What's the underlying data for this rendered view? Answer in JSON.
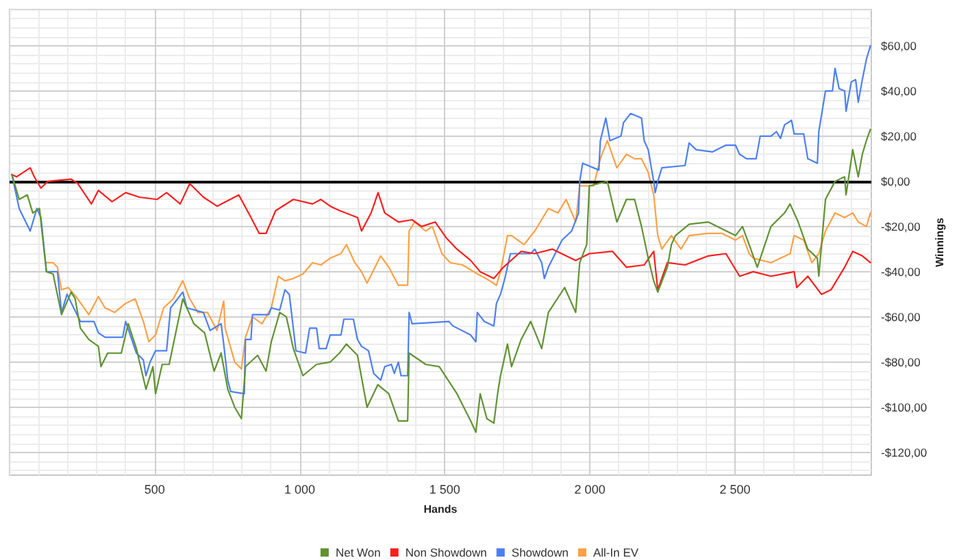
{
  "chart_data": {
    "type": "line",
    "xlabel": "Hands",
    "ylabel": "Winnings",
    "xlim": [
      0,
      2970
    ],
    "xticks": [
      500,
      {
        "value": 1000,
        "label": "1 000"
      },
      {
        "value": 1500,
        "label": "1 500"
      },
      {
        "value": 2000,
        "label": "2 000"
      },
      {
        "value": 2500,
        "label": "2 500"
      }
    ],
    "ylim": [
      -130,
      76
    ],
    "yticks": [
      {
        "value": -120,
        "label": "-$120,00"
      },
      {
        "value": -100,
        "label": "-$100,00"
      },
      {
        "value": -80,
        "label": "-$80,00"
      },
      {
        "value": -60,
        "label": "-$60,00"
      },
      {
        "value": -40,
        "label": "-$40,00"
      },
      {
        "value": -20,
        "label": "-$20,00"
      },
      {
        "value": 0,
        "label": "$0,00"
      },
      {
        "value": 20,
        "label": "$20,00"
      },
      {
        "value": 40,
        "label": "$40,00"
      },
      {
        "value": 60,
        "label": "$60,00"
      }
    ],
    "grid": true,
    "legend": "bottom",
    "marker": "none",
    "line_style": "solid",
    "ref_lines": [
      {
        "axis": "y",
        "value": 0,
        "color": "#000000"
      }
    ],
    "series": [
      {
        "name": "Net Won",
        "color": "#5f9231",
        "x": [
          8,
          33,
          61,
          80,
          103,
          127,
          150,
          179,
          212,
          226,
          244,
          273,
          306,
          315,
          338,
          385,
          409,
          437,
          470,
          494,
          503,
          526,
          550,
          597,
          635,
          672,
          705,
          729,
          752,
          776,
          799,
          813,
          855,
          884,
          902,
          931,
          954,
          978,
          1011,
          1058,
          1105,
          1137,
          1161,
          1199,
          1232,
          1269,
          1307,
          1340,
          1372,
          1377,
          1434,
          1481,
          1542,
          1589,
          1607,
          1622,
          1645,
          1669,
          1683,
          1692,
          1716,
          1730,
          1763,
          1796,
          1834,
          1857,
          1913,
          1951,
          1965,
          1989,
          1998,
          2060,
          2093,
          2126,
          2154,
          2178,
          2201,
          2220,
          2234,
          2267,
          2281,
          2295,
          2342,
          2408,
          2455,
          2502,
          2526,
          2549,
          2577,
          2624,
          2671,
          2690,
          2718,
          2751,
          2784,
          2789,
          2812,
          2845,
          2878,
          2883,
          2906,
          2925,
          2939,
          2953,
          2967
        ],
        "values": [
          3,
          -8,
          -6,
          -14,
          -12,
          -40,
          -41,
          -59,
          -49,
          -52,
          -65,
          -70,
          -73,
          -82,
          -76,
          -76,
          -63,
          -74,
          -92,
          -82,
          -94,
          -81,
          -81,
          -52,
          -63,
          -67,
          -84,
          -76,
          -92,
          -100,
          -105,
          -82,
          -77,
          -84,
          -71,
          -58,
          -60,
          -74,
          -86,
          -81,
          -80,
          -76,
          -72,
          -77,
          -100,
          -90,
          -94,
          -106,
          -106,
          -76,
          -81,
          -82,
          -94,
          -106,
          -111,
          -94,
          -105,
          -107,
          -93,
          -86,
          -72,
          -82,
          -70,
          -62,
          -74,
          -58,
          -47,
          -58,
          -36,
          -28,
          -2,
          0,
          -18,
          -8,
          -8,
          -20,
          -34,
          -44,
          -49,
          -38,
          -28,
          -24,
          -19,
          -18,
          -21,
          -24,
          -20,
          -28,
          -38,
          -20,
          -14,
          -10,
          -18,
          -30,
          -34,
          -42,
          -8,
          0,
          2,
          -6,
          14,
          2,
          12,
          18,
          23
        ]
      },
      {
        "name": "Non Showdown",
        "color": "#ff1d1d",
        "x": [
          8,
          24,
          71,
          85,
          108,
          132,
          212,
          235,
          282,
          306,
          353,
          400,
          447,
          508,
          541,
          588,
          621,
          668,
          715,
          790,
          832,
          860,
          884,
          917,
          978,
          1044,
          1073,
          1105,
          1138,
          1199,
          1213,
          1246,
          1270,
          1293,
          1340,
          1387,
          1420,
          1467,
          1505,
          1542,
          1589,
          1622,
          1669,
          1702,
          1763,
          1810,
          1871,
          1951,
          1998,
          2078,
          2126,
          2187,
          2220,
          2234,
          2267,
          2328,
          2408,
          2469,
          2516,
          2563,
          2624,
          2704,
          2713,
          2751,
          2798,
          2831,
          2878,
          2906,
          2939,
          2967
        ],
        "values": [
          3,
          2,
          6,
          2,
          -3,
          0,
          1,
          -1,
          -10,
          -4,
          -9,
          -5,
          -7,
          -8,
          -5,
          -10,
          -1,
          -7,
          -11,
          -6,
          -16,
          -23,
          -23,
          -13,
          -8,
          -10,
          -8,
          -11,
          -13,
          -16,
          -22,
          -14,
          -5,
          -14,
          -18,
          -17,
          -20,
          -18,
          -25,
          -30,
          -35,
          -40,
          -43,
          -38,
          -31,
          -32,
          -30,
          -35,
          -32,
          -31,
          -38,
          -37,
          -31,
          -48,
          -36,
          -37,
          -33,
          -32,
          -42,
          -40,
          -42,
          -40,
          -47,
          -42,
          -50,
          -48,
          -38,
          -31,
          -33,
          -36
        ]
      },
      {
        "name": "Showdown",
        "color": "#4c7ff0",
        "x": [
          8,
          33,
          71,
          94,
          108,
          127,
          165,
          179,
          198,
          244,
          291,
          306,
          329,
          390,
          400,
          437,
          461,
          470,
          484,
          503,
          541,
          555,
          597,
          611,
          668,
          691,
          729,
          738,
          752,
          762,
          809,
          813,
          832,
          837,
          893,
          902,
          931,
          949,
          964,
          987,
          1020,
          1034,
          1058,
          1067,
          1091,
          1105,
          1142,
          1152,
          1185,
          1199,
          1213,
          1237,
          1255,
          1279,
          1293,
          1316,
          1326,
          1340,
          1349,
          1372,
          1377,
          1387,
          1514,
          1528,
          1589,
          1607,
          1612,
          1636,
          1669,
          1678,
          1692,
          1707,
          1726,
          1749,
          1796,
          1810,
          1834,
          1843,
          1857,
          1904,
          1937,
          1961,
          1965,
          1975,
          2031,
          2036,
          2055,
          2069,
          2107,
          2116,
          2140,
          2178,
          2187,
          2201,
          2220,
          2225,
          2234,
          2248,
          2328,
          2342,
          2366,
          2422,
          2469,
          2502,
          2516,
          2540,
          2573,
          2587,
          2624,
          2643,
          2657,
          2671,
          2695,
          2704,
          2737,
          2751,
          2784,
          2789,
          2812,
          2836,
          2845,
          2859,
          2878,
          2883,
          2901,
          2916,
          2925,
          2939,
          2953,
          2967
        ],
        "values": [
          3,
          -12,
          -22,
          -12,
          -16,
          -40,
          -40,
          -58,
          -50,
          -62,
          -62,
          -67,
          -69,
          -69,
          -62,
          -76,
          -79,
          -86,
          -80,
          -75,
          -75,
          -56,
          -49,
          -56,
          -58,
          -66,
          -63,
          -72,
          -88,
          -93,
          -94,
          -70,
          -70,
          -59,
          -59,
          -56,
          -57,
          -48,
          -50,
          -75,
          -76,
          -65,
          -65,
          -74,
          -74,
          -68,
          -68,
          -61,
          -61,
          -70,
          -73,
          -75,
          -85,
          -88,
          -82,
          -81,
          -85,
          -80,
          -86,
          -86,
          -58,
          -63,
          -62,
          -64,
          -68,
          -71,
          -58,
          -62,
          -64,
          -54,
          -50,
          -43,
          -32,
          -32,
          -32,
          -30,
          -36,
          -43,
          -38,
          -26,
          -22,
          -14,
          0,
          8,
          5,
          18,
          28,
          18,
          20,
          26,
          30,
          28,
          18,
          14,
          0,
          -5,
          0,
          6,
          7,
          17,
          14,
          13,
          16,
          16,
          12,
          10,
          10,
          20,
          20,
          22,
          19,
          25,
          27,
          21,
          21,
          10,
          8,
          22,
          40,
          40,
          50,
          41,
          40,
          31,
          44,
          45,
          35,
          45,
          54,
          60
        ]
      },
      {
        "name": "All-In EV",
        "color": "#ffa045",
        "x": [
          127,
          150,
          165,
          179,
          202,
          235,
          273,
          306,
          329,
          362,
          400,
          433,
          461,
          480,
          503,
          531,
          564,
          597,
          621,
          649,
          682,
          715,
          738,
          743,
          776,
          799,
          813,
          837,
          870,
          902,
          926,
          949,
          978,
          1011,
          1044,
          1073,
          1105,
          1142,
          1161,
          1190,
          1213,
          1232,
          1279,
          1307,
          1340,
          1372,
          1377,
          1396,
          1434,
          1457,
          1490,
          1519,
          1561,
          1613,
          1655,
          1678,
          1692,
          1716,
          1730,
          1773,
          1810,
          1857,
          1890,
          1918,
          1951,
          1965,
          2013,
          2036,
          2060,
          2093,
          2126,
          2154,
          2178,
          2201,
          2220,
          2234,
          2248,
          2281,
          2314,
          2342,
          2408,
          2455,
          2502,
          2526,
          2549,
          2563,
          2624,
          2690,
          2704,
          2737,
          2765,
          2789,
          2812,
          2845,
          2878,
          2906,
          2925,
          2953,
          2967
        ],
        "values": [
          -36,
          -36,
          -38,
          -48,
          -47,
          -52,
          -59,
          -51,
          -56,
          -58,
          -54,
          -52,
          -62,
          -71,
          -68,
          -56,
          -52,
          -44,
          -52,
          -58,
          -58,
          -66,
          -53,
          -65,
          -80,
          -83,
          -69,
          -60,
          -63,
          -56,
          -42,
          -44,
          -43,
          -41,
          -36,
          -37,
          -34,
          -32,
          -28,
          -36,
          -40,
          -45,
          -33,
          -38,
          -46,
          -46,
          -22,
          -18,
          -22,
          -20,
          -32,
          -36,
          -37,
          -41,
          -44,
          -46,
          -40,
          -24,
          -24,
          -28,
          -22,
          -12,
          -14,
          -8,
          -18,
          -2,
          -2,
          10,
          18,
          6,
          12,
          10,
          10,
          4,
          -6,
          -24,
          -30,
          -24,
          -30,
          -24,
          -23,
          -23,
          -26,
          -24,
          -32,
          -34,
          -36,
          -32,
          -24,
          -26,
          -36,
          -32,
          -22,
          -14,
          -16,
          -14,
          -18,
          -20,
          -14
        ]
      }
    ]
  }
}
